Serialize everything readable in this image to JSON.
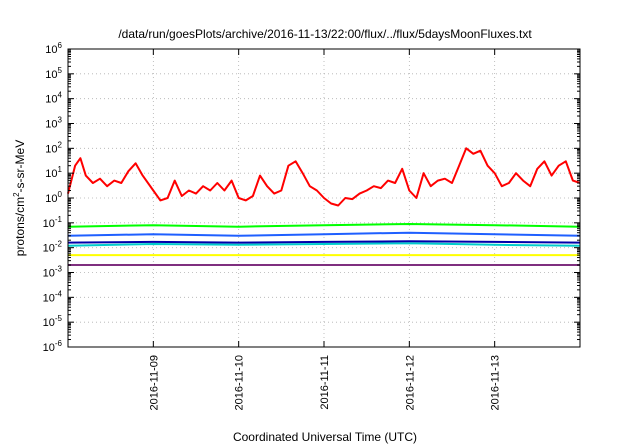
{
  "chart_data": {
    "type": "line",
    "title": "/data/run/goesPlots/archive/2016-11-13/22:00/flux/../flux/5daysMoonFluxes.txt",
    "xlabel": "Coordinated Universal Time (UTC)",
    "ylabel_parts": [
      "protons/cm",
      "2",
      "-s-sr-MeV"
    ],
    "y_scale": "log",
    "ylim": [
      1e-06,
      1000000.0
    ],
    "y_ticks": [
      {
        "base": "10",
        "exp": "-6",
        "value": 1e-06
      },
      {
        "base": "10",
        "exp": "-5",
        "value": 1e-05
      },
      {
        "base": "10",
        "exp": "-4",
        "value": 0.0001
      },
      {
        "base": "10",
        "exp": "-3",
        "value": 0.001
      },
      {
        "base": "10",
        "exp": "-2",
        "value": 0.01
      },
      {
        "base": "10",
        "exp": "-1",
        "value": 0.1
      },
      {
        "base": "10",
        "exp": "0",
        "value": 1
      },
      {
        "base": "10",
        "exp": "1",
        "value": 10
      },
      {
        "base": "10",
        "exp": "2",
        "value": 100
      },
      {
        "base": "10",
        "exp": "3",
        "value": 1000
      },
      {
        "base": "10",
        "exp": "4",
        "value": 10000
      },
      {
        "base": "10",
        "exp": "5",
        "value": 100000
      },
      {
        "base": "10",
        "exp": "6",
        "value": 1000000
      }
    ],
    "xlim": [
      "2016-11-08 00:00",
      "2016-11-14 00:00"
    ],
    "x_ticks": [
      "2016-11-09",
      "2016-11-10",
      "2016-11-11",
      "2016-11-12",
      "2016-11-13"
    ],
    "grid": true,
    "legend": "none",
    "series": [
      {
        "color": "#ff0000",
        "x": [
          "2016-11-08 00:00",
          "2016-11-08 02:00",
          "2016-11-08 03:30",
          "2016-11-08 05:00",
          "2016-11-08 07:00",
          "2016-11-08 09:00",
          "2016-11-08 11:00",
          "2016-11-08 13:00",
          "2016-11-08 15:00",
          "2016-11-08 17:00",
          "2016-11-08 19:00",
          "2016-11-08 21:00",
          "2016-11-09 00:00",
          "2016-11-09 02:00",
          "2016-11-09 04:00",
          "2016-11-09 06:00",
          "2016-11-09 08:00",
          "2016-11-09 10:00",
          "2016-11-09 12:00",
          "2016-11-09 14:00",
          "2016-11-09 16:00",
          "2016-11-09 18:00",
          "2016-11-09 20:00",
          "2016-11-09 22:00",
          "2016-11-10 00:00",
          "2016-11-10 02:00",
          "2016-11-10 04:00",
          "2016-11-10 06:00",
          "2016-11-10 08:00",
          "2016-11-10 10:00",
          "2016-11-10 12:00",
          "2016-11-10 14:00",
          "2016-11-10 16:00",
          "2016-11-10 18:00",
          "2016-11-10 20:00",
          "2016-11-10 22:00",
          "2016-11-11 00:00",
          "2016-11-11 02:00",
          "2016-11-11 04:00",
          "2016-11-11 06:00",
          "2016-11-11 08:00",
          "2016-11-11 10:00",
          "2016-11-11 12:00",
          "2016-11-11 14:00",
          "2016-11-11 16:00",
          "2016-11-11 18:00",
          "2016-11-11 20:00",
          "2016-11-11 22:00",
          "2016-11-12 00:00",
          "2016-11-12 02:00",
          "2016-11-12 04:00",
          "2016-11-12 06:00",
          "2016-11-12 08:00",
          "2016-11-12 10:00",
          "2016-11-12 12:00",
          "2016-11-12 14:00",
          "2016-11-12 16:00",
          "2016-11-12 18:00",
          "2016-11-12 20:00",
          "2016-11-12 22:00",
          "2016-11-13 00:00",
          "2016-11-13 02:00",
          "2016-11-13 04:00",
          "2016-11-13 06:00",
          "2016-11-13 08:00",
          "2016-11-13 10:00",
          "2016-11-13 12:00",
          "2016-11-13 14:00",
          "2016-11-13 16:00",
          "2016-11-13 18:00",
          "2016-11-13 20:00",
          "2016-11-13 22:00",
          "2016-11-14 00:00"
        ],
        "values": [
          1.5,
          20,
          40,
          8,
          4,
          6,
          3,
          5,
          4,
          12,
          25,
          8,
          2,
          0.8,
          1,
          5,
          1.2,
          2,
          1.5,
          3,
          2,
          4,
          2,
          5,
          1,
          0.8,
          1.2,
          8,
          3,
          1.5,
          2,
          20,
          30,
          10,
          3,
          2,
          1,
          0.6,
          0.5,
          1,
          0.9,
          1.5,
          2,
          3,
          2.5,
          5,
          4,
          15,
          2,
          1,
          10,
          3,
          5,
          6,
          4,
          20,
          100,
          60,
          80,
          20,
          10,
          3,
          4,
          10,
          5,
          3,
          15,
          30,
          8,
          20,
          30,
          5,
          4
        ]
      },
      {
        "color": "#00ff00",
        "x": [
          "2016-11-08 00:00",
          "2016-11-09 00:00",
          "2016-11-10 00:00",
          "2016-11-11 00:00",
          "2016-11-12 00:00",
          "2016-11-13 00:00",
          "2016-11-14 00:00"
        ],
        "values": [
          0.07,
          0.08,
          0.07,
          0.08,
          0.09,
          0.08,
          0.07
        ]
      },
      {
        "color": "#00cccc",
        "x": [
          "2016-11-08 00:00",
          "2016-11-09 00:00",
          "2016-11-10 00:00",
          "2016-11-11 00:00",
          "2016-11-12 00:00",
          "2016-11-13 00:00",
          "2016-11-14 00:00"
        ],
        "values": [
          0.012,
          0.014,
          0.013,
          0.014,
          0.015,
          0.013,
          0.012
        ]
      },
      {
        "color": "#1f5fff",
        "x": [
          "2016-11-08 00:00",
          "2016-11-09 00:00",
          "2016-11-10 00:00",
          "2016-11-11 00:00",
          "2016-11-12 00:00",
          "2016-11-13 00:00",
          "2016-11-14 00:00"
        ],
        "values": [
          0.03,
          0.035,
          0.03,
          0.035,
          0.04,
          0.035,
          0.03
        ]
      },
      {
        "color": "#0000aa",
        "x": [
          "2016-11-08 00:00",
          "2016-11-09 00:00",
          "2016-11-10 00:00",
          "2016-11-11 00:00",
          "2016-11-12 00:00",
          "2016-11-13 00:00",
          "2016-11-14 00:00"
        ],
        "values": [
          0.016,
          0.017,
          0.016,
          0.017,
          0.018,
          0.017,
          0.016
        ]
      },
      {
        "color": "#ffff00",
        "x": [
          "2016-11-08 00:00",
          "2016-11-09 00:00",
          "2016-11-10 00:00",
          "2016-11-11 00:00",
          "2016-11-12 00:00",
          "2016-11-13 00:00",
          "2016-11-14 00:00"
        ],
        "values": [
          0.005,
          0.005,
          0.005,
          0.005,
          0.005,
          0.005,
          0.005
        ]
      },
      {
        "color": "#7f2f7f",
        "x": [
          "2016-11-08 00:00",
          "2016-11-09 00:00",
          "2016-11-10 00:00",
          "2016-11-11 00:00",
          "2016-11-12 00:00",
          "2016-11-13 00:00",
          "2016-11-14 00:00"
        ],
        "values": [
          0.002,
          0.002,
          0.002,
          0.002,
          0.002,
          0.002,
          0.002
        ]
      }
    ]
  }
}
